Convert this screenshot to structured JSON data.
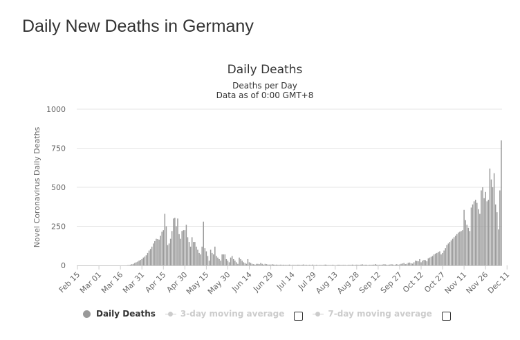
{
  "page": {
    "title": "Daily New Deaths in Germany"
  },
  "legend": {
    "items": [
      {
        "label": "Daily Deaths",
        "color": "#999999",
        "active": true
      },
      {
        "label": "3-day moving average",
        "color": "#cccccc",
        "active": false
      },
      {
        "label": "7-day moving average",
        "color": "#cccccc",
        "active": false
      }
    ]
  },
  "colors": {
    "bar": "#999999",
    "grid": "#e6e6e6",
    "axis_text": "#666666",
    "title_text": "#333333"
  },
  "chart_data": {
    "type": "bar",
    "title": "Daily Deaths",
    "subtitle": [
      "Deaths per Day",
      "Data as of 0:00 GMT+8"
    ],
    "xlabel": "",
    "ylabel": "Novel Coronavirus Daily Deaths",
    "ylim": [
      0,
      1000
    ],
    "yticks": [
      0,
      250,
      500,
      750,
      1000
    ],
    "grid": true,
    "legend_position": "bottom",
    "x_start": "Feb 15",
    "x_end": "Dec 14",
    "xticks": [
      "Feb 15",
      "Mar 01",
      "Mar 16",
      "Mar 31",
      "Apr 15",
      "Apr 30",
      "May 15",
      "May 30",
      "Jun 14",
      "Jun 29",
      "Jul 14",
      "Jul 29",
      "Aug 13",
      "Aug 28",
      "Sep 12",
      "Sep 27",
      "Oct 12",
      "Oct 27",
      "Nov 11",
      "Nov 26",
      "Dec 11"
    ],
    "series": [
      {
        "name": "Daily Deaths",
        "values": [
          0,
          0,
          0,
          0,
          0,
          0,
          0,
          0,
          0,
          0,
          0,
          0,
          0,
          0,
          0,
          0,
          0,
          0,
          0,
          0,
          0,
          0,
          0,
          0,
          0,
          0,
          0,
          0,
          0,
          0,
          0,
          0,
          0,
          0,
          0,
          1,
          2,
          4,
          8,
          10,
          15,
          20,
          24,
          30,
          35,
          40,
          50,
          56,
          65,
          80,
          95,
          105,
          120,
          140,
          155,
          170,
          168,
          165,
          190,
          215,
          225,
          330,
          250,
          130,
          140,
          170,
          220,
          300,
          305,
          250,
          300,
          200,
          170,
          220,
          225,
          225,
          260,
          180,
          150,
          120,
          180,
          150,
          150,
          120,
          100,
          80,
          70,
          120,
          280,
          110,
          90,
          60,
          30,
          100,
          80,
          70,
          120,
          60,
          50,
          40,
          30,
          70,
          70,
          70,
          40,
          30,
          20,
          50,
          60,
          40,
          30,
          20,
          10,
          50,
          40,
          30,
          20,
          15,
          10,
          40,
          20,
          15,
          10,
          8,
          5,
          10,
          10,
          8,
          15,
          10,
          5,
          10,
          8,
          6,
          5,
          5,
          8,
          5,
          4,
          5,
          3,
          3,
          5,
          2,
          4,
          3,
          2,
          3,
          5,
          2,
          3,
          2,
          3,
          2,
          4,
          3,
          2,
          3,
          6,
          2,
          3,
          2,
          3,
          2,
          5,
          2,
          2,
          3,
          1,
          2,
          2,
          1,
          2,
          5,
          3,
          2,
          1,
          2,
          3,
          2,
          1,
          1,
          4,
          3,
          2,
          2,
          3,
          2,
          1,
          3,
          2,
          3,
          5,
          2,
          3,
          4,
          3,
          2,
          5,
          7,
          3,
          3,
          4,
          2,
          3,
          4,
          3,
          5,
          9,
          4,
          3,
          4,
          3,
          5,
          8,
          6,
          4,
          3,
          5,
          8,
          6,
          3,
          5,
          8,
          4,
          6,
          10,
          12,
          15,
          8,
          10,
          16,
          18,
          13,
          11,
          20,
          30,
          28,
          26,
          40,
          20,
          30,
          35,
          33,
          26,
          45,
          50,
          55,
          60,
          70,
          75,
          80,
          85,
          90,
          70,
          80,
          95,
          110,
          130,
          140,
          150,
          160,
          170,
          180,
          190,
          200,
          210,
          215,
          220,
          225,
          355,
          290,
          260,
          240,
          220,
          370,
          390,
          410,
          420,
          400,
          360,
          330,
          480,
          500,
          430,
          470,
          410,
          420,
          620,
          550,
          500,
          590,
          390,
          340,
          230,
          480,
          800
        ]
      }
    ]
  }
}
